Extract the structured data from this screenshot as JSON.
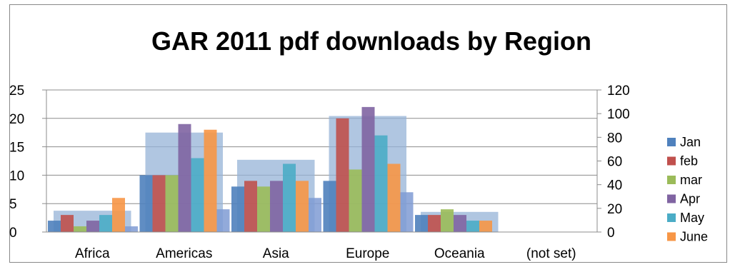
{
  "chart_data": {
    "type": "bar",
    "title": "GAR 2011 pdf downloads by Region",
    "categories": [
      "Africa",
      "Americas",
      "Asia",
      "Europe",
      "Oceania",
      "(not set)"
    ],
    "series": [
      {
        "name": "Jan",
        "values": [
          2,
          10,
          8,
          9,
          3,
          0
        ],
        "color": "#4F81BD"
      },
      {
        "name": "feb",
        "values": [
          3,
          10,
          9,
          20,
          3,
          0
        ],
        "color": "#C0504D"
      },
      {
        "name": "mar",
        "values": [
          1,
          10,
          8,
          11,
          4,
          0
        ],
        "color": "#9BBB59"
      },
      {
        "name": "Apr",
        "values": [
          2,
          19,
          9,
          22,
          3,
          0
        ],
        "color": "#8064A2"
      },
      {
        "name": "May",
        "values": [
          3,
          13,
          12,
          17,
          2,
          0
        ],
        "color": "#4BACC6"
      },
      {
        "name": "June",
        "values": [
          6,
          18,
          9,
          12,
          2,
          0
        ],
        "color": "#F79646"
      }
    ],
    "overlay_series": {
      "axis": "secondary",
      "values": [
        18,
        84,
        61,
        98,
        17,
        0
      ],
      "color": "#95B3D7"
    },
    "trailing_series": {
      "axis": "primary",
      "values": [
        1,
        4,
        6,
        7,
        0,
        0
      ],
      "color": "#7F9BD3"
    },
    "primary_axis": {
      "ylim": [
        0,
        25
      ],
      "ticks": [
        "0",
        "5",
        "10",
        "15",
        "20",
        "25"
      ]
    },
    "secondary_axis": {
      "ylim": [
        0,
        120
      ],
      "ticks": [
        "0",
        "20",
        "40",
        "60",
        "80",
        "100",
        "120"
      ]
    },
    "legend_position": "right",
    "grid": true
  }
}
